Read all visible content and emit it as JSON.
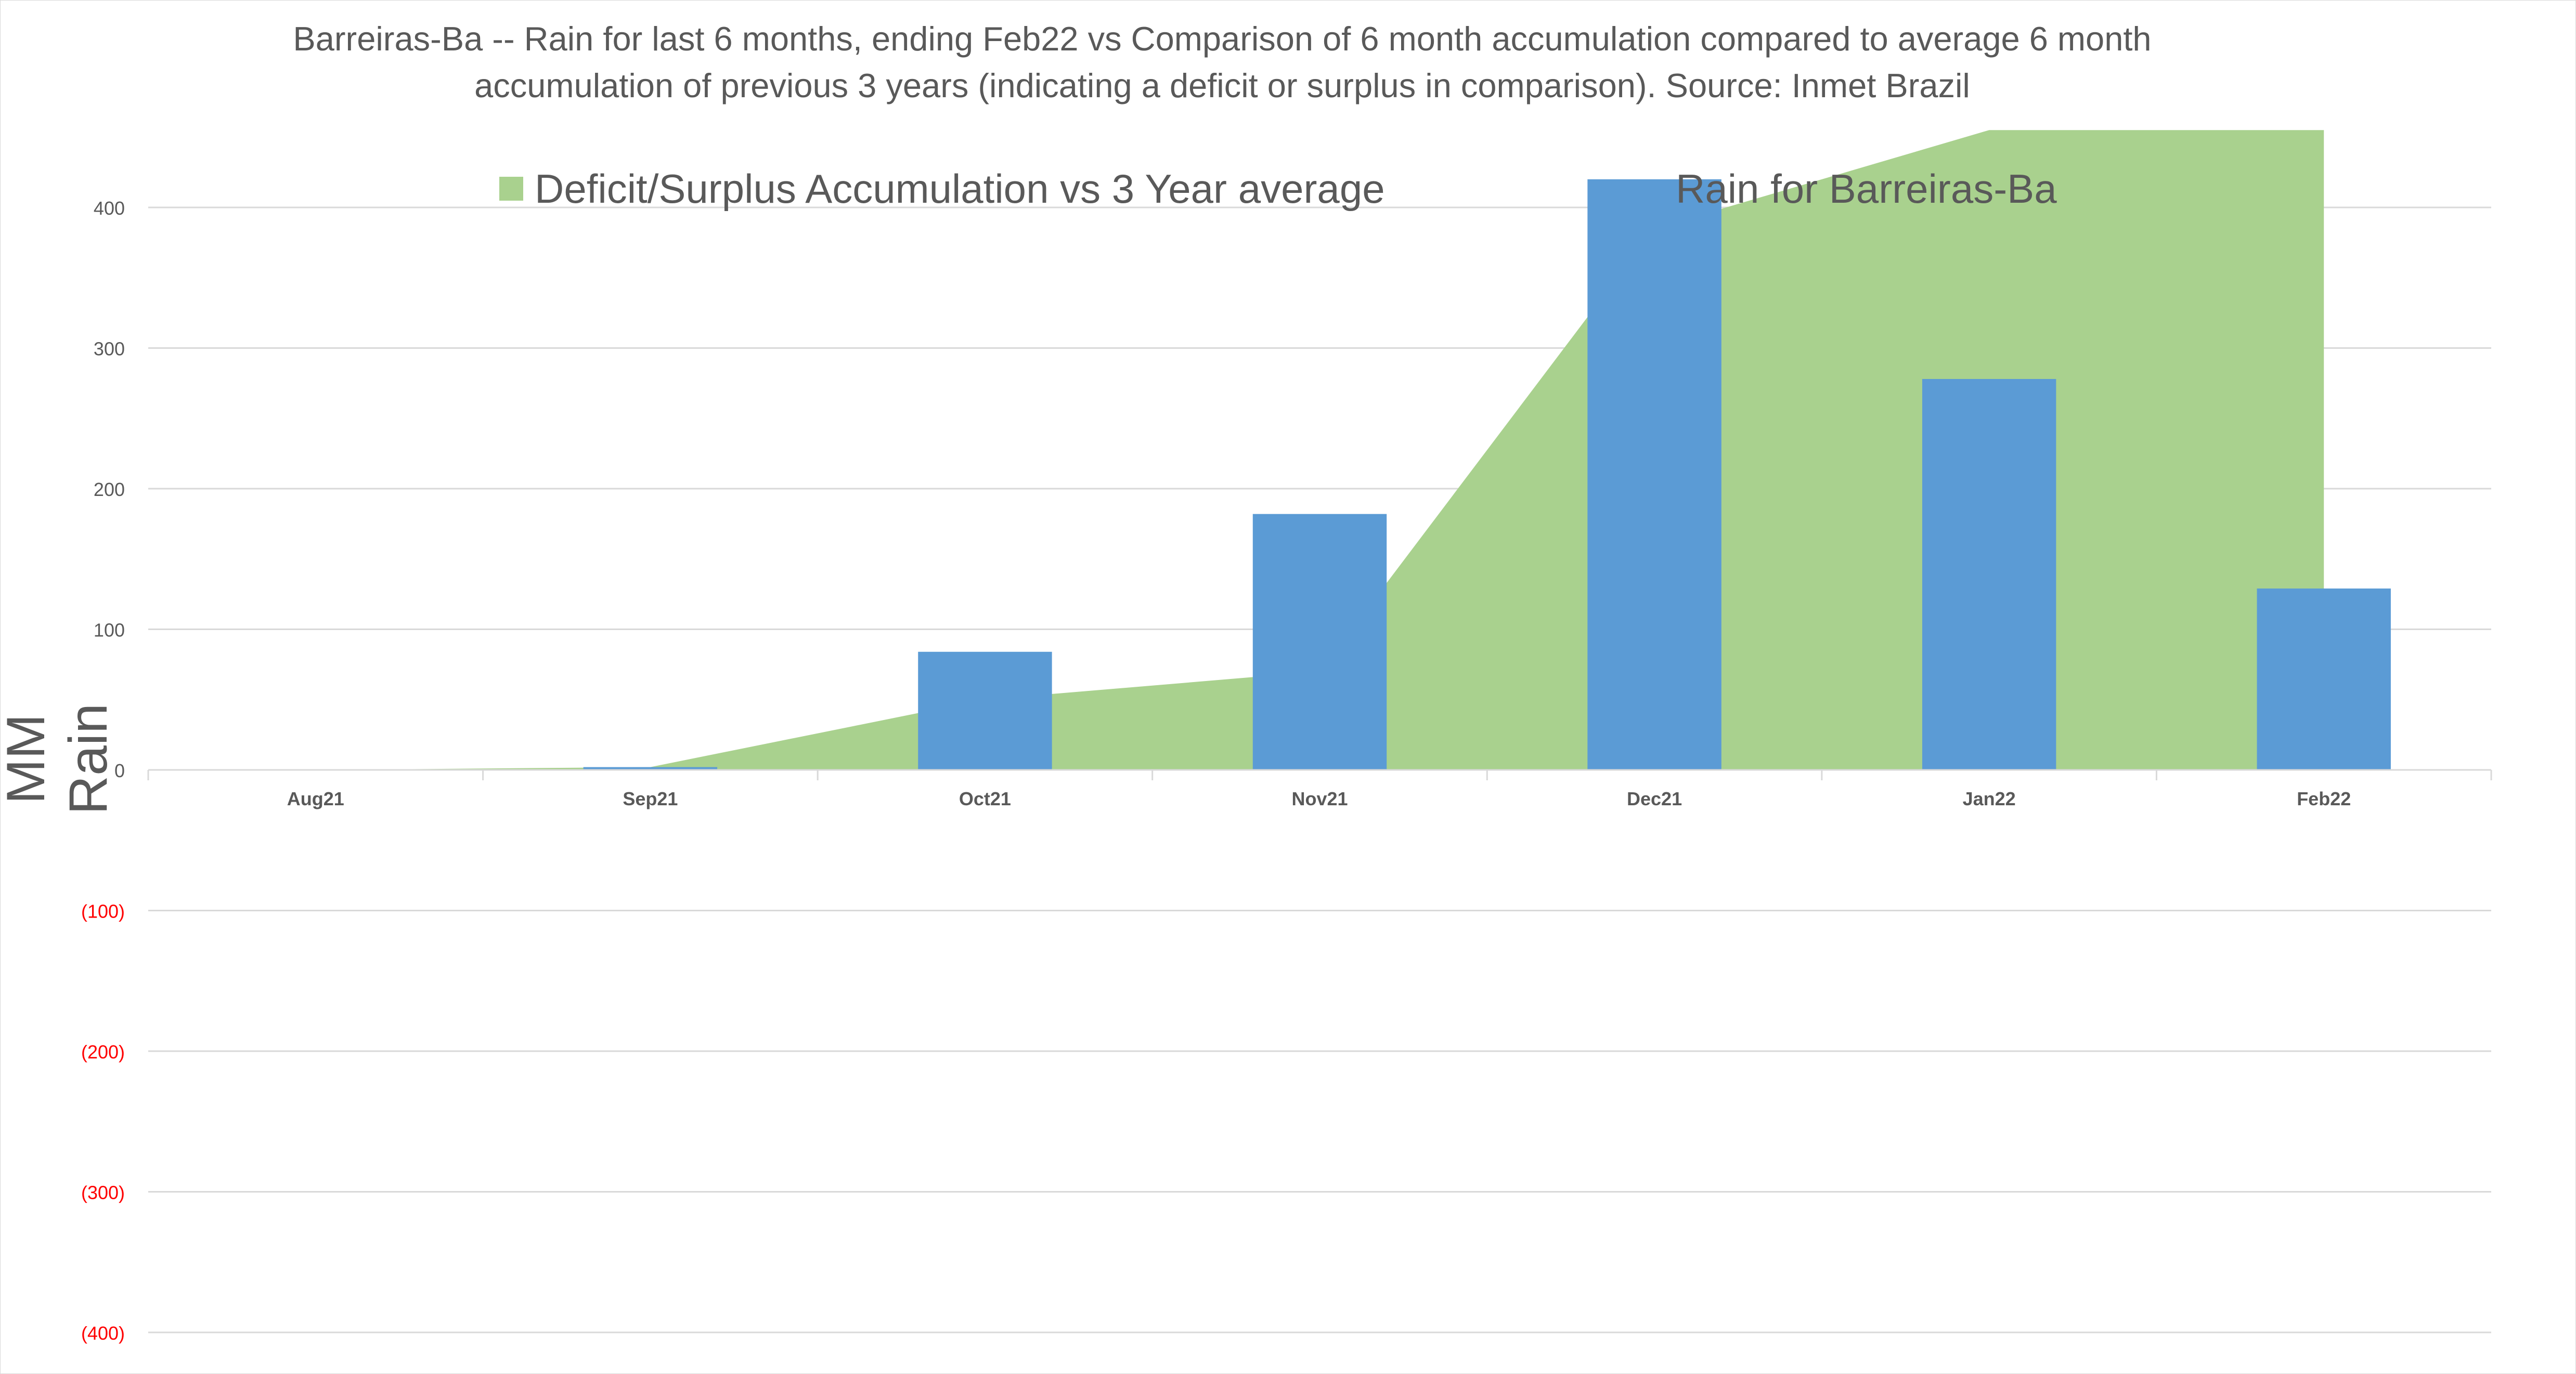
{
  "chart_data": {
    "type": "bar+area",
    "title": "Barreiras-Ba -- Rain for last 6 months, ending Feb22  vs Comparison of 6 month accumulation compared to average 6 month accumulation of previous 3 years  (indicating a deficit or surplus in comparison). Source: Inmet Brazil",
    "ylabel": "MM Rain",
    "ylim": [
      -400,
      450
    ],
    "yticks": [
      {
        "value": 400,
        "label": "400",
        "color": "#595959"
      },
      {
        "value": 300,
        "label": "300",
        "color": "#595959"
      },
      {
        "value": 200,
        "label": "200",
        "color": "#595959"
      },
      {
        "value": 100,
        "label": "100",
        "color": "#595959"
      },
      {
        "value": 0,
        "label": "0",
        "color": "#595959"
      },
      {
        "value": -100,
        "label": "(100)",
        "color": "#ff0000"
      },
      {
        "value": -200,
        "label": "(200)",
        "color": "#ff0000"
      },
      {
        "value": -300,
        "label": "(300)",
        "color": "#ff0000"
      },
      {
        "value": -400,
        "label": "(400)",
        "color": "#ff0000"
      }
    ],
    "categories": [
      "Aug21",
      "Sep21",
      "Oct21",
      "Nov21",
      "Dec21",
      "Jan22",
      "Feb22"
    ],
    "grid": true,
    "legend_position": "top",
    "series": [
      {
        "name": "Deficit/Surplus Accumulation vs 3 Year average",
        "kind": "area",
        "color": "#a9d18e",
        "values": [
          0,
          2,
          50,
          70,
          385,
          455,
          455
        ]
      },
      {
        "name": "Rain for Barreiras-Ba",
        "kind": "bar",
        "color": "#5b9bd5",
        "values": [
          0,
          2,
          84,
          182,
          420,
          278,
          129
        ]
      }
    ]
  }
}
